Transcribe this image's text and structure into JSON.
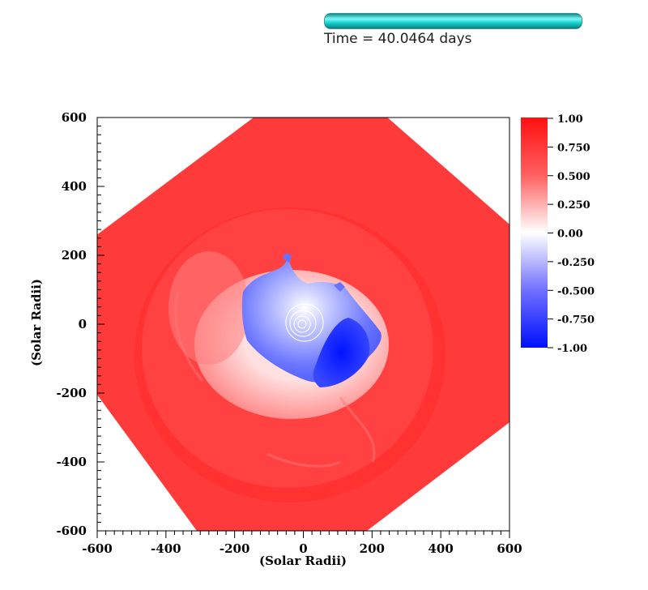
{
  "time_text": "Time = 40.0464 days",
  "time_bar": {
    "progress": 1.0,
    "color": "#11d9d9"
  },
  "chart_data": {
    "type": "heatmap",
    "title": "",
    "xlabel": "(Solar Radii)",
    "ylabel": "(Solar Radii)",
    "xlim": [
      -600,
      600
    ],
    "ylim": [
      -600,
      600
    ],
    "x_ticks": [
      -600,
      -400,
      -200,
      0,
      200,
      400,
      600
    ],
    "y_ticks": [
      -600,
      -400,
      -200,
      0,
      200,
      400,
      600
    ],
    "colorbar": {
      "range": [
        -1.0,
        1.0
      ],
      "tick_values": [
        1.0,
        0.75,
        0.5,
        0.25,
        0.0,
        -0.25,
        -0.5,
        -0.75,
        -1.0
      ],
      "tick_labels": [
        "1.00",
        "0.750",
        "0.500",
        "0.250",
        "0.00",
        "-0.250",
        "-0.500",
        "-0.750",
        "-1.00"
      ],
      "colors": {
        "max": "#ff1010",
        "mid": "#ffffff",
        "min": "#0010ff"
      }
    },
    "domain_outline": [
      [
        -145,
        600
      ],
      [
        245,
        600
      ],
      [
        600,
        290
      ],
      [
        600,
        -285
      ],
      [
        185,
        -600
      ],
      [
        -310,
        -600
      ],
      [
        -600,
        -205
      ],
      [
        -600,
        260
      ]
    ]
  }
}
